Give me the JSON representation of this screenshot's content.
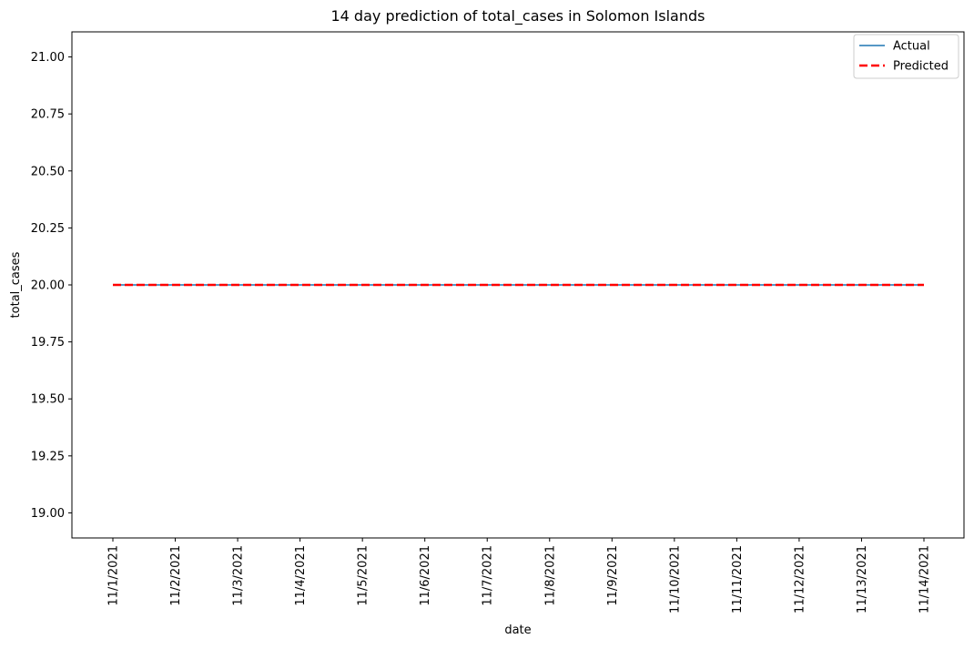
{
  "chart_data": {
    "type": "line",
    "title": "14 day prediction of total_cases in Solomon Islands",
    "xlabel": "date",
    "ylabel": "total_cases",
    "x": [
      "11/1/2021",
      "11/2/2021",
      "11/3/2021",
      "11/4/2021",
      "11/5/2021",
      "11/6/2021",
      "11/7/2021",
      "11/8/2021",
      "11/9/2021",
      "11/10/2021",
      "11/11/2021",
      "11/12/2021",
      "11/13/2021",
      "11/14/2021"
    ],
    "yticks": [
      "19.00",
      "19.25",
      "19.50",
      "19.75",
      "20.00",
      "20.25",
      "20.50",
      "20.75",
      "21.00"
    ],
    "ylim": [
      18.89,
      21.11
    ],
    "series": [
      {
        "name": "Actual",
        "color": "#1f77b4",
        "dash": "solid",
        "values": [
          20,
          20,
          20,
          20,
          20,
          20,
          20,
          20,
          20,
          20,
          20,
          20,
          20,
          20
        ]
      },
      {
        "name": "Predicted",
        "color": "#ff0000",
        "dash": "dashed",
        "values": [
          20,
          20,
          20,
          20,
          20,
          20,
          20,
          20,
          20,
          20,
          20,
          20,
          20,
          20
        ]
      }
    ],
    "legend": "top-right",
    "grid": false
  }
}
